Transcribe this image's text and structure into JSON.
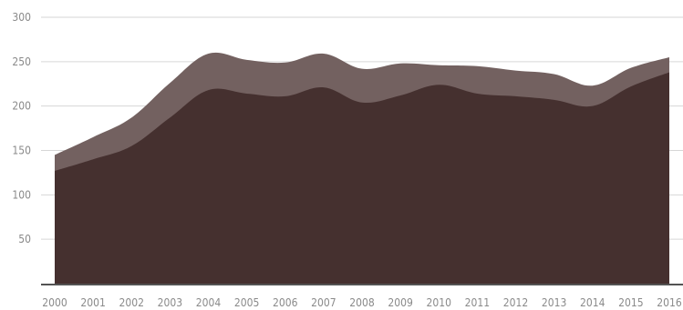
{
  "chart_data": {
    "type": "area",
    "stacked": true,
    "x": [
      2000,
      2001,
      2002,
      2003,
      2004,
      2005,
      2006,
      2007,
      2008,
      2009,
      2010,
      2011,
      2012,
      2013,
      2014,
      2015,
      2016
    ],
    "x_tick_labels": [
      "2000",
      "2001",
      "2002",
      "2003",
      "2004",
      "2005",
      "2006",
      "2007",
      "2008",
      "2009",
      "2010",
      "2011",
      "2012",
      "2013",
      "2014",
      "2015",
      "2016"
    ],
    "y_ticks": [
      50,
      100,
      150,
      200,
      250,
      300
    ],
    "y_tick_labels": [
      "50",
      "100",
      "150",
      "200",
      "250",
      "300"
    ],
    "ylim": [
      0,
      300
    ],
    "grid": true,
    "series": [
      {
        "color": "#45302f",
        "values": [
          127,
          140,
          155,
          187,
          218,
          214,
          211,
          221,
          204,
          212,
          224,
          214,
          211,
          207,
          200,
          222,
          238
        ]
      },
      {
        "color": "#736160",
        "values": [
          18,
          25,
          32,
          39,
          41,
          38,
          38,
          38,
          38,
          36,
          22,
          31,
          29,
          29,
          23,
          21,
          17
        ]
      }
    ],
    "title": "",
    "xlabel": "",
    "ylabel": ""
  }
}
